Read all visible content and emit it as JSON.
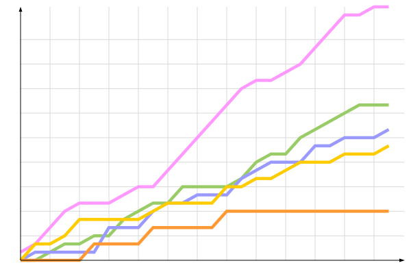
{
  "chart_data": {
    "type": "line",
    "title": "",
    "xlabel": "",
    "ylabel": "",
    "x": [
      0,
      1,
      2,
      3,
      4,
      5,
      6,
      7,
      8,
      9,
      10,
      11,
      12,
      13,
      14,
      15,
      16,
      17,
      18,
      19,
      20,
      21,
      22,
      23,
      24,
      25
    ],
    "xlim": [
      0,
      26
    ],
    "ylim": [
      0,
      31
    ],
    "grid": true,
    "grid_x_step": 2,
    "grid_y_step": 3,
    "legend": "none",
    "series": [
      {
        "color": "#ff99ff",
        "values": [
          1,
          2,
          4,
          6,
          7,
          7,
          7,
          8,
          9,
          9,
          11,
          13,
          15,
          17,
          19,
          21,
          22,
          22,
          23,
          24,
          26,
          28,
          30,
          30,
          31,
          31
        ]
      },
      {
        "color": "#99cc66",
        "values": [
          0,
          0,
          1,
          2,
          2,
          3,
          3,
          5,
          6,
          7,
          7,
          9,
          9,
          9,
          9,
          10,
          12,
          13,
          13,
          15,
          16,
          17,
          18,
          19,
          19,
          19
        ]
      },
      {
        "color": "#9999ff",
        "values": [
          0,
          1,
          1,
          1,
          1,
          1,
          4,
          4,
          4,
          6,
          7,
          7,
          8,
          8,
          8,
          10,
          11,
          12,
          12,
          12,
          14,
          14,
          15,
          15,
          15,
          16
        ]
      },
      {
        "color": "#ffcc00",
        "values": [
          0,
          2,
          2,
          3,
          5,
          5,
          5,
          5,
          5,
          6,
          7,
          7,
          7,
          7,
          9,
          9,
          10,
          10,
          11,
          12,
          12,
          12,
          13,
          13,
          13,
          14
        ]
      },
      {
        "color": "#ff9933",
        "values": [
          0,
          0,
          0,
          0,
          0,
          2,
          2,
          2,
          2,
          4,
          4,
          4,
          4,
          4,
          6,
          6,
          6,
          6,
          6,
          6,
          6,
          6,
          6,
          6,
          6,
          6
        ]
      }
    ]
  }
}
